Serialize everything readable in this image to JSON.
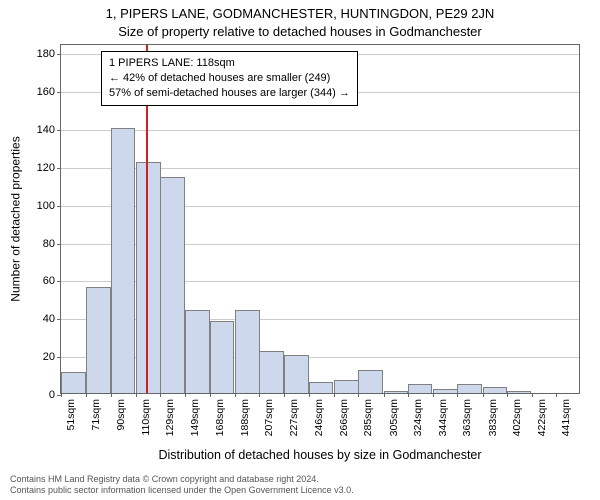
{
  "chart": {
    "type": "histogram",
    "title_line1": "1, PIPERS LANE, GODMANCHESTER, HUNTINGDON, PE29 2JN",
    "title_line2": "Size of property relative to detached houses in Godmanchester",
    "title_fontsize": 13,
    "ylabel": "Number of detached properties",
    "xlabel": "Distribution of detached houses by size in Godmanchester",
    "label_fontsize": 12,
    "background_color": "#ffffff",
    "plot_border_color": "#666666",
    "grid_color": "#cccccc",
    "bar_fill": "#cdd8ec",
    "bar_stroke": "#808080",
    "marker_color": "#d02020",
    "annotation_border": "#000000",
    "ylim": [
      0,
      185
    ],
    "ytick_step": 20,
    "yticks": [
      0,
      20,
      40,
      60,
      80,
      100,
      120,
      140,
      160,
      180
    ],
    "bin_width_sqm": 19.5,
    "bin_starts": [
      51,
      71,
      90,
      110,
      129,
      149,
      168,
      188,
      207,
      227,
      246,
      266,
      285,
      305,
      324,
      344,
      363,
      383,
      402,
      422,
      441
    ],
    "xtick_labels": [
      "51sqm",
      "71sqm",
      "90sqm",
      "110sqm",
      "129sqm",
      "149sqm",
      "168sqm",
      "188sqm",
      "207sqm",
      "227sqm",
      "246sqm",
      "266sqm",
      "285sqm",
      "305sqm",
      "324sqm",
      "344sqm",
      "363sqm",
      "383sqm",
      "402sqm",
      "422sqm",
      "441sqm"
    ],
    "values": [
      11,
      56,
      140,
      122,
      114,
      44,
      38,
      44,
      22,
      20,
      6,
      7,
      12,
      1,
      5,
      2,
      5,
      3,
      1,
      0,
      0
    ],
    "marker_sqm": 118,
    "annotation": {
      "line1": "1 PIPERS LANE: 118sqm",
      "line2": "← 42% of detached houses are smaller (249)",
      "line3": "57% of semi-detached houses are larger (344) →",
      "fontsize": 11
    },
    "footer_line1": "Contains HM Land Registry data © Crown copyright and database right 2024.",
    "footer_line2": "Contains public sector information licensed under the Open Government Licence v3.0.",
    "footer_color": "#555555"
  }
}
